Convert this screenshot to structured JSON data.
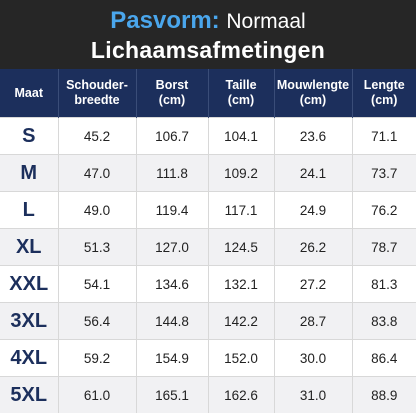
{
  "header": {
    "label": "Pasvorm:",
    "fit": "Normaal",
    "title": "Lichaamsafmetingen"
  },
  "table": {
    "columns": [
      [
        "Maat"
      ],
      [
        "Schouder-",
        "breedte"
      ],
      [
        "Borst",
        "(cm)"
      ],
      [
        "Taille",
        "(cm)"
      ],
      [
        "Mouwlengte",
        "(cm)"
      ],
      [
        "Lengte",
        "(cm)"
      ]
    ],
    "rows": [
      [
        "S",
        "45.2",
        "106.7",
        "104.1",
        "23.6",
        "71.1"
      ],
      [
        "M",
        "47.0",
        "111.8",
        "109.2",
        "24.1",
        "73.7"
      ],
      [
        "L",
        "49.0",
        "119.4",
        "117.1",
        "24.9",
        "76.2"
      ],
      [
        "XL",
        "51.3",
        "127.0",
        "124.5",
        "26.2",
        "78.7"
      ],
      [
        "XXL",
        "54.1",
        "134.6",
        "132.1",
        "27.2",
        "81.3"
      ],
      [
        "3XL",
        "56.4",
        "144.8",
        "142.2",
        "28.7",
        "83.8"
      ],
      [
        "4XL",
        "59.2",
        "154.9",
        "152.0",
        "30.0",
        "86.4"
      ],
      [
        "5XL",
        "61.0",
        "165.1",
        "162.6",
        "31.0",
        "88.9"
      ]
    ]
  }
}
